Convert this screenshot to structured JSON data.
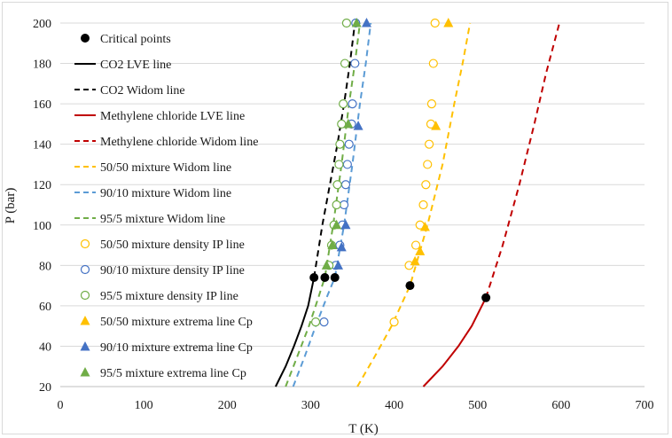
{
  "chart_data": {
    "type": "scatter",
    "xlabel": "T (K)",
    "ylabel": "P (bar)",
    "xlim": [
      0,
      700
    ],
    "ylim": [
      20,
      200
    ],
    "x_ticks": [
      0,
      100,
      200,
      300,
      400,
      500,
      600,
      700
    ],
    "y_ticks": [
      20,
      40,
      60,
      80,
      100,
      120,
      140,
      160,
      180,
      200
    ],
    "grid": "horizontal",
    "legend_position": "top-left",
    "series": [
      {
        "name": "Critical points",
        "kind": "marker",
        "marker": "filled-circle",
        "color": "#000000",
        "points": [
          [
            304,
            74
          ],
          [
            317,
            74
          ],
          [
            329,
            74
          ],
          [
            419,
            70
          ],
          [
            510,
            64
          ]
        ]
      },
      {
        "name": "CO2 LVE line",
        "kind": "line",
        "dash": "solid",
        "color": "#000000",
        "points": [
          [
            258,
            20
          ],
          [
            270,
            30
          ],
          [
            280,
            40
          ],
          [
            289,
            50
          ],
          [
            297,
            60
          ],
          [
            304,
            74
          ]
        ]
      },
      {
        "name": "CO2 Widom line",
        "kind": "line",
        "dash": "dashed",
        "color": "#000000",
        "points": [
          [
            304,
            74
          ],
          [
            314,
            100
          ],
          [
            323,
            120
          ],
          [
            332,
            140
          ],
          [
            340,
            160
          ],
          [
            347,
            180
          ],
          [
            353,
            200
          ]
        ]
      },
      {
        "name": "Methylene chloride LVE line",
        "kind": "line",
        "dash": "solid",
        "color": "#c00000",
        "points": [
          [
            435,
            20
          ],
          [
            458,
            30
          ],
          [
            477,
            40
          ],
          [
            493,
            50
          ],
          [
            510,
            64
          ]
        ]
      },
      {
        "name": "Methylene chloride Widom line",
        "kind": "line",
        "dash": "dashed",
        "color": "#c00000",
        "points": [
          [
            510,
            64
          ],
          [
            530,
            90
          ],
          [
            550,
            120
          ],
          [
            568,
            150
          ],
          [
            582,
            175
          ],
          [
            598,
            200
          ]
        ]
      },
      {
        "name": "50/50 mixture Widom line",
        "kind": "line",
        "dash": "dashed",
        "color": "#ffc000",
        "points": [
          [
            356,
            20
          ],
          [
            377,
            35
          ],
          [
            397,
            50
          ],
          [
            419,
            70
          ],
          [
            440,
            100
          ],
          [
            458,
            130
          ],
          [
            472,
            160
          ],
          [
            482,
            180
          ],
          [
            491,
            200
          ]
        ]
      },
      {
        "name": "90/10 mixture Widom line",
        "kind": "line",
        "dash": "dashed",
        "color": "#5b9bd5",
        "points": [
          [
            279,
            20
          ],
          [
            293,
            35
          ],
          [
            306,
            50
          ],
          [
            320,
            65
          ],
          [
            329,
            74
          ],
          [
            340,
            100
          ],
          [
            350,
            130
          ],
          [
            359,
            160
          ],
          [
            366,
            180
          ],
          [
            372,
            200
          ]
        ]
      },
      {
        "name": "95/5 mixture Widom line",
        "kind": "line",
        "dash": "dashed",
        "color": "#70ad47",
        "points": [
          [
            270,
            20
          ],
          [
            284,
            35
          ],
          [
            298,
            50
          ],
          [
            310,
            65
          ],
          [
            317,
            74
          ],
          [
            327,
            100
          ],
          [
            337,
            130
          ],
          [
            346,
            160
          ],
          [
            353,
            180
          ],
          [
            359,
            200
          ]
        ]
      },
      {
        "name": "50/50 mixture density IP line",
        "kind": "marker",
        "marker": "open-circle",
        "color": "#ffc000",
        "points": [
          [
            400,
            52
          ],
          [
            418,
            80
          ],
          [
            426,
            90
          ],
          [
            431,
            100
          ],
          [
            435,
            110
          ],
          [
            438,
            120
          ],
          [
            440,
            130
          ],
          [
            442,
            140
          ],
          [
            444,
            150
          ],
          [
            445,
            160
          ],
          [
            447,
            180
          ],
          [
            449,
            200
          ]
        ]
      },
      {
        "name": "90/10 mixture density IP line",
        "kind": "marker",
        "marker": "open-circle",
        "color": "#4472c4",
        "points": [
          [
            316,
            52
          ],
          [
            330,
            80
          ],
          [
            335,
            90
          ],
          [
            338,
            100
          ],
          [
            340,
            110
          ],
          [
            342,
            120
          ],
          [
            344,
            130
          ],
          [
            346,
            140
          ],
          [
            349,
            150
          ],
          [
            350,
            160
          ],
          [
            353,
            180
          ],
          [
            354,
            200
          ]
        ]
      },
      {
        "name": "95/5 mixture density IP line",
        "kind": "marker",
        "marker": "open-circle",
        "color": "#70ad47",
        "points": [
          [
            306,
            52
          ],
          [
            322,
            80
          ],
          [
            325,
            90
          ],
          [
            328,
            100
          ],
          [
            331,
            110
          ],
          [
            332,
            120
          ],
          [
            334,
            130
          ],
          [
            335,
            140
          ],
          [
            337,
            150
          ],
          [
            339,
            160
          ],
          [
            341,
            180
          ],
          [
            343,
            200
          ]
        ]
      },
      {
        "name": "50/50 mixture extrema line Cp",
        "kind": "marker",
        "marker": "filled-triangle",
        "color": "#ffc000",
        "points": [
          [
            425,
            82
          ],
          [
            431,
            87
          ],
          [
            437,
            99
          ],
          [
            450,
            149
          ],
          [
            465,
            200
          ]
        ]
      },
      {
        "name": "90/10 mixture extrema line Cp",
        "kind": "marker",
        "marker": "filled-triangle",
        "color": "#4472c4",
        "points": [
          [
            333,
            80
          ],
          [
            337,
            89
          ],
          [
            342,
            100
          ],
          [
            357,
            149
          ],
          [
            367,
            200
          ]
        ]
      },
      {
        "name": "95/5 mixture extrema line Cp",
        "kind": "marker",
        "marker": "filled-triangle",
        "color": "#70ad47",
        "points": [
          [
            319,
            80
          ],
          [
            326,
            90
          ],
          [
            331,
            100
          ],
          [
            345,
            150
          ],
          [
            355,
            200
          ]
        ]
      }
    ]
  }
}
